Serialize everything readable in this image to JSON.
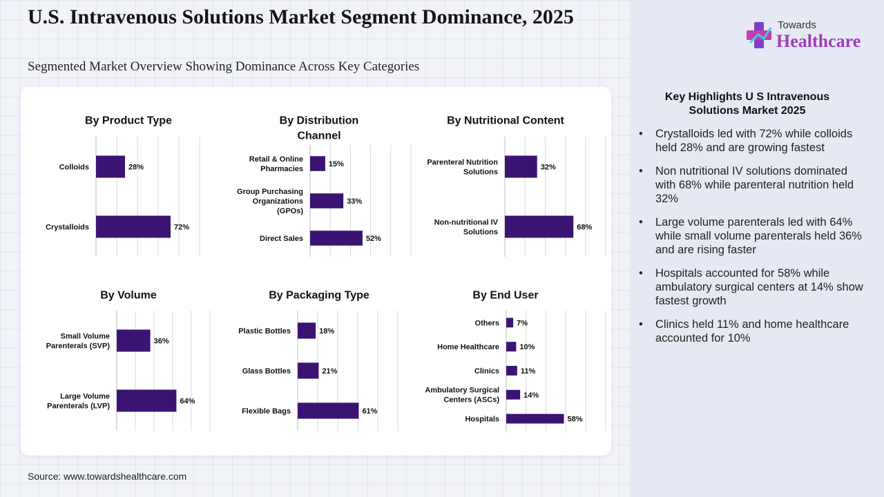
{
  "header": {
    "title": "U.S. Intravenous Solutions Market Segment Dominance, 2025",
    "subtitle": "Segmented Market Overview Showing Dominance Across Key Categories"
  },
  "logo": {
    "small": "Towards",
    "big": "Healthcare"
  },
  "source": "Source: www.towardshealthcare.com",
  "highlights": {
    "title": "Key Highlights U S Intravenous Solutions Market 2025",
    "items": [
      "Crystalloids led with 72% while colloids held 28% and are growing fastest",
      "Non nutritional IV solutions dominated with 68% while parenteral nutrition held 32%",
      "Large volume parenterals led with 64% while small volume parenterals held 36% and are rising faster",
      "Hospitals accounted for 58% while ambulatory surgical centers at 14% show fastest growth",
      "Clinics held 11% and home healthcare accounted for 10%"
    ]
  },
  "colors": {
    "bar": "#3b1473",
    "grid": "#d9d9d9"
  },
  "chart_data": [
    {
      "type": "bar",
      "orientation": "horizontal",
      "title": [
        "By Product Type"
      ],
      "categories": [
        [
          "Colloids"
        ],
        [
          "Crystalloids"
        ]
      ],
      "values": [
        28,
        72
      ],
      "labels": [
        "28%",
        "72%"
      ],
      "xlim": [
        0,
        100
      ]
    },
    {
      "type": "bar",
      "orientation": "horizontal",
      "title": [
        "By Distribution",
        "Channel"
      ],
      "categories": [
        [
          "Retail & Online",
          "Pharmacies"
        ],
        [
          "Group Purchasing",
          "Organizations",
          "(GPOs)"
        ],
        [
          "Direct Sales"
        ]
      ],
      "values": [
        15,
        33,
        52
      ],
      "labels": [
        "15%",
        "33%",
        "52%"
      ],
      "xlim": [
        0,
        100
      ]
    },
    {
      "type": "bar",
      "orientation": "horizontal",
      "title": [
        "By Nutritional Content"
      ],
      "categories": [
        [
          "Parenteral Nutrition",
          "Solutions"
        ],
        [
          "Non-nutritional IV",
          "Solutions"
        ]
      ],
      "values": [
        32,
        68
      ],
      "labels": [
        "32%",
        "68%"
      ],
      "xlim": [
        0,
        100
      ]
    },
    {
      "type": "bar",
      "orientation": "horizontal",
      "title": [
        "By Volume"
      ],
      "categories": [
        [
          "Small Volume",
          "Parenterals (SVP)"
        ],
        [
          "Large Volume",
          "Parenterals (LVP)"
        ]
      ],
      "values": [
        36,
        64
      ],
      "labels": [
        "36%",
        "64%"
      ],
      "xlim": [
        0,
        100
      ]
    },
    {
      "type": "bar",
      "orientation": "horizontal",
      "title": [
        "By Packaging Type"
      ],
      "categories": [
        [
          "Plastic Bottles"
        ],
        [
          "Glass Bottles"
        ],
        [
          "Flexible Bags"
        ]
      ],
      "values": [
        18,
        21,
        61
      ],
      "labels": [
        "18%",
        "21%",
        "61%"
      ],
      "xlim": [
        0,
        100
      ]
    },
    {
      "type": "bar",
      "orientation": "horizontal",
      "title": [
        "By End User"
      ],
      "categories": [
        [
          "Others"
        ],
        [
          "Home Healthcare"
        ],
        [
          "Clinics"
        ],
        [
          "Ambulatory Surgical",
          "Centers (ASCs)"
        ],
        [
          "Hospitals"
        ]
      ],
      "values": [
        7,
        10,
        11,
        14,
        58
      ],
      "labels": [
        "7%",
        "10%",
        "11%",
        "14%",
        "58%"
      ],
      "xlim": [
        0,
        100
      ]
    }
  ]
}
